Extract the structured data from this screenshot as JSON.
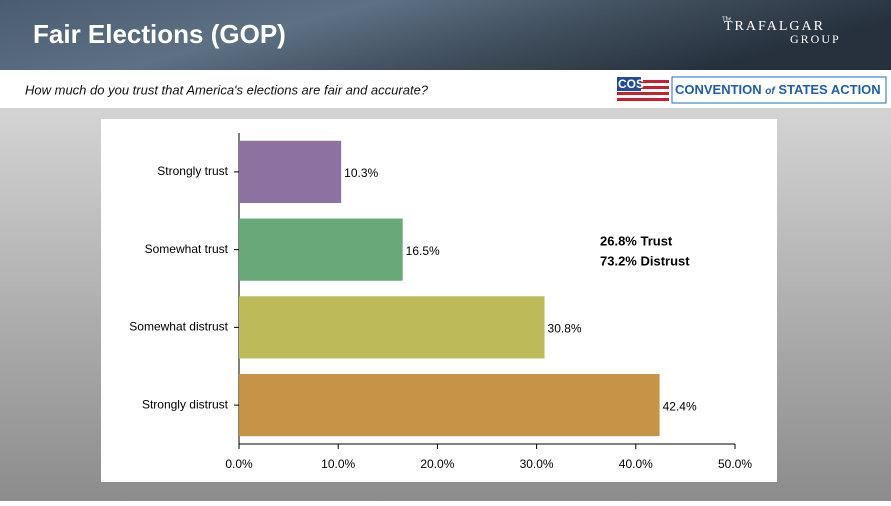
{
  "header": {
    "title": "Fair Elections (GOP)",
    "subtitle": "How much do you trust that America's elections are fair and accurate?"
  },
  "logos": {
    "pollster_small": "The",
    "pollster_top": "TRAFALGAR",
    "pollster_bottom": "GROUP",
    "sponsor_badge": "COS",
    "sponsor_name": "CONVENTION",
    "sponsor_of": "of",
    "sponsor_rest": "STATES ACTION"
  },
  "chart_data": {
    "type": "hbar",
    "categories": [
      "Strongly trust",
      "Somewhat trust",
      "Somewhat distrust",
      "Strongly distrust"
    ],
    "values": [
      10.3,
      16.5,
      30.8,
      42.4
    ],
    "value_labels": [
      "10.3%",
      "16.5%",
      "30.8%",
      "42.4%"
    ],
    "colors": [
      "#8d72a1",
      "#69a878",
      "#bcbb58",
      "#c59447"
    ],
    "xlim": [
      0,
      50
    ],
    "xticks": [
      {
        "value": 0,
        "label": "0.0%"
      },
      {
        "value": 10,
        "label": "10.0%"
      },
      {
        "value": 20,
        "label": "20.0%"
      },
      {
        "value": 30,
        "label": "30.0%"
      },
      {
        "value": 40,
        "label": "40.0%"
      },
      {
        "value": 50,
        "label": "50.0%"
      }
    ],
    "annotations": [
      "26.8% Trust",
      "73.2% Distrust"
    ]
  }
}
